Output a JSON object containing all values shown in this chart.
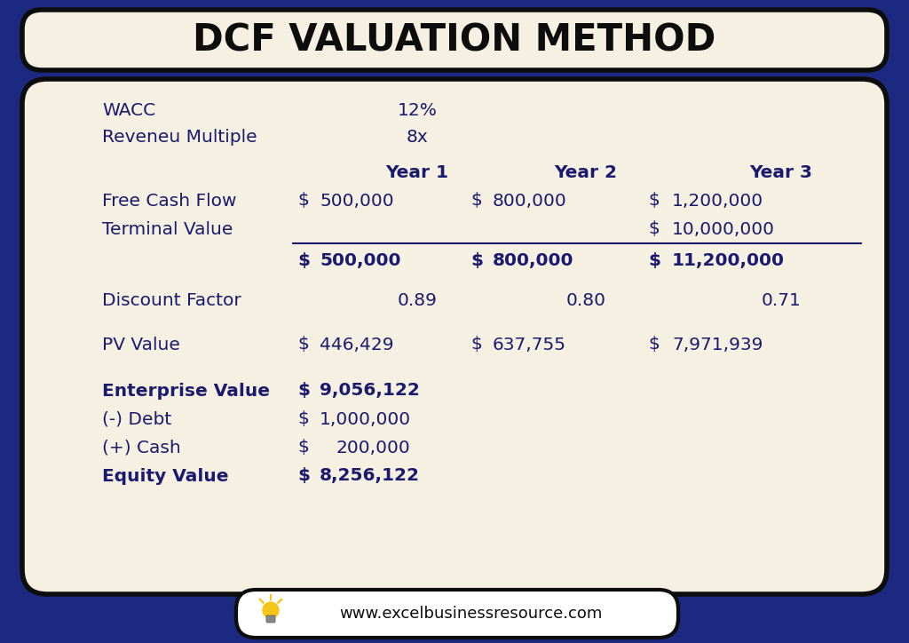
{
  "title": "DCF VALUATION METHOD",
  "bg_color": "#1b2a80",
  "card_color": "#f5f0e1",
  "title_bg_color": "#f5f0e1",
  "title_color": "#0d0d0d",
  "text_color": "#1a1a6e",
  "website": "www.excelbusinessresource.com",
  "wacc": "12%",
  "revenue_multiple": "8x",
  "years": [
    "Year 1",
    "Year 2",
    "Year 3"
  ],
  "free_cash_flow": [
    "500,000",
    "800,000",
    "1,200,000"
  ],
  "terminal_value": "10,000,000",
  "total_row": [
    "500,000",
    "800,000",
    "11,200,000"
  ],
  "discount_factor": [
    "0.89",
    "0.80",
    "0.71"
  ],
  "pv_value": [
    "446,429",
    "637,755",
    "7,971,939"
  ],
  "enterprise_value": "9,056,122",
  "debt": "1,000,000",
  "cash": "200,000",
  "equity_value": "8,256,122",
  "font_size": 14.5,
  "bold_size": 14.5
}
